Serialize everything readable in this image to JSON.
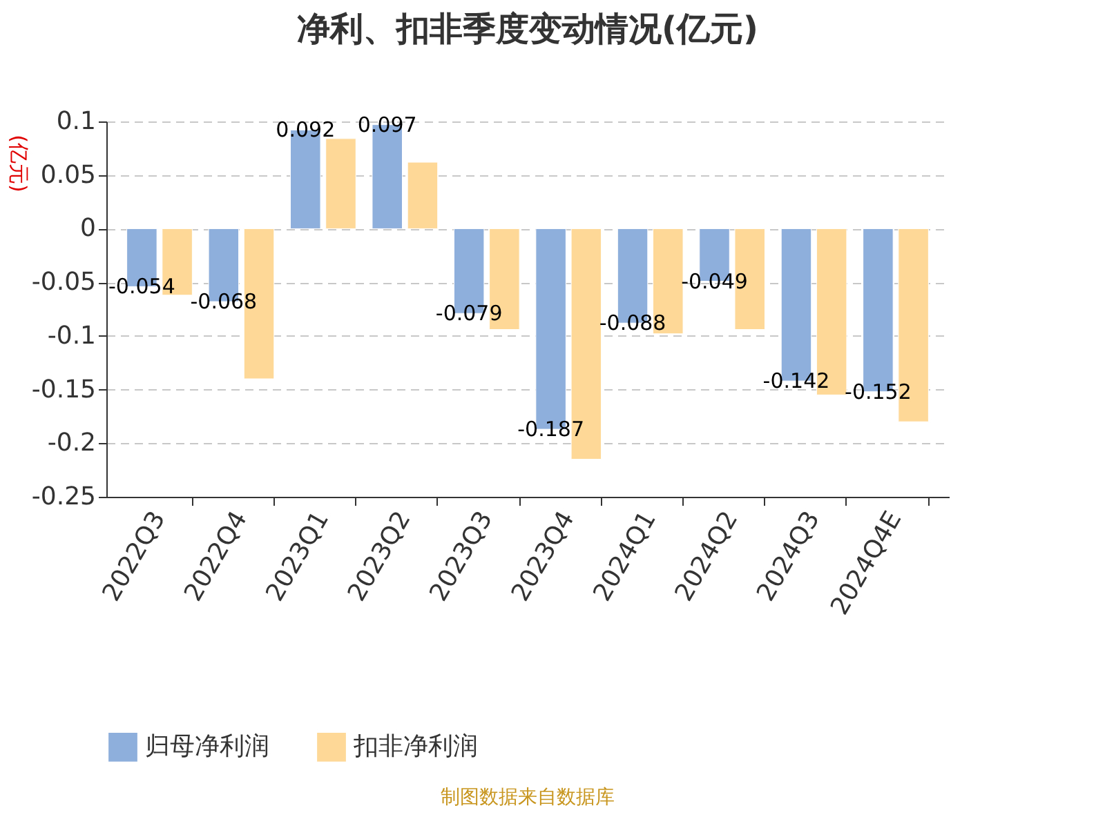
{
  "chart_data": {
    "type": "bar",
    "title": "净利、扣非季度变动情况(亿元)",
    "ylabel": "(亿元)",
    "categories": [
      "2022Q3",
      "2022Q4",
      "2023Q1",
      "2023Q2",
      "2023Q3",
      "2023Q4",
      "2024Q1",
      "2024Q2",
      "2024Q3",
      "2024Q4E"
    ],
    "series": [
      {
        "name": "归母净利润",
        "color": "#8eaedb",
        "values": [
          -0.054,
          -0.068,
          0.092,
          0.097,
          -0.079,
          -0.187,
          -0.088,
          -0.049,
          -0.142,
          -0.152
        ],
        "data_labels": true
      },
      {
        "name": "扣非净利润",
        "color": "#fed897",
        "values": [
          -0.062,
          -0.14,
          0.084,
          0.062,
          -0.094,
          -0.215,
          -0.098,
          -0.094,
          -0.155,
          -0.18
        ]
      }
    ],
    "ylim": [
      -0.25,
      0.1
    ],
    "yticks": [
      -0.25,
      -0.2,
      -0.15,
      -0.1,
      -0.05,
      0,
      0.05,
      0.1
    ],
    "grid": "y",
    "legend": "bottom",
    "annotations": [
      "制图数据来自数据库"
    ]
  }
}
